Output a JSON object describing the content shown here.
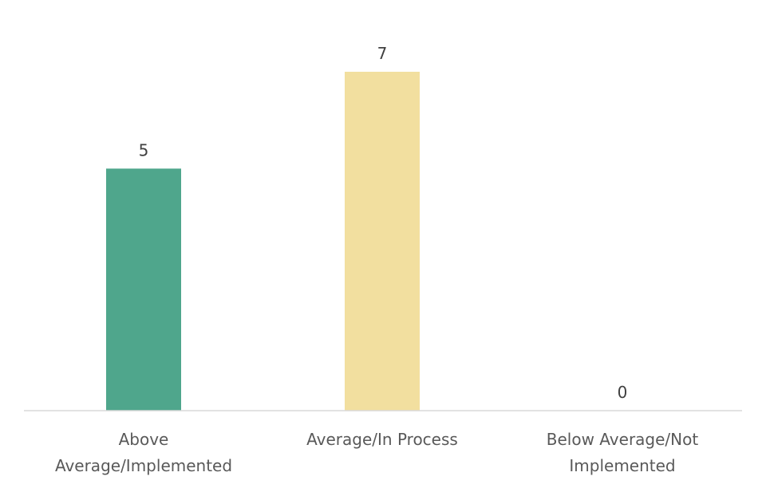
{
  "chart_data": {
    "type": "bar",
    "categories": [
      [
        "Above",
        "Average/Implemented"
      ],
      [
        "Average/In Process"
      ],
      [
        "Below Average/Not",
        "Implemented"
      ]
    ],
    "values": [
      5,
      7,
      0
    ],
    "value_labels": [
      "5",
      "7",
      "0"
    ],
    "bar_colors": [
      "#4fa68c",
      "#f2df9f",
      "#d9d9d9"
    ],
    "axis_color": "#d9d9d9",
    "ylim": [
      0,
      7
    ],
    "title": "",
    "xlabel": "",
    "ylabel": "",
    "grid": false,
    "legend": "none"
  }
}
